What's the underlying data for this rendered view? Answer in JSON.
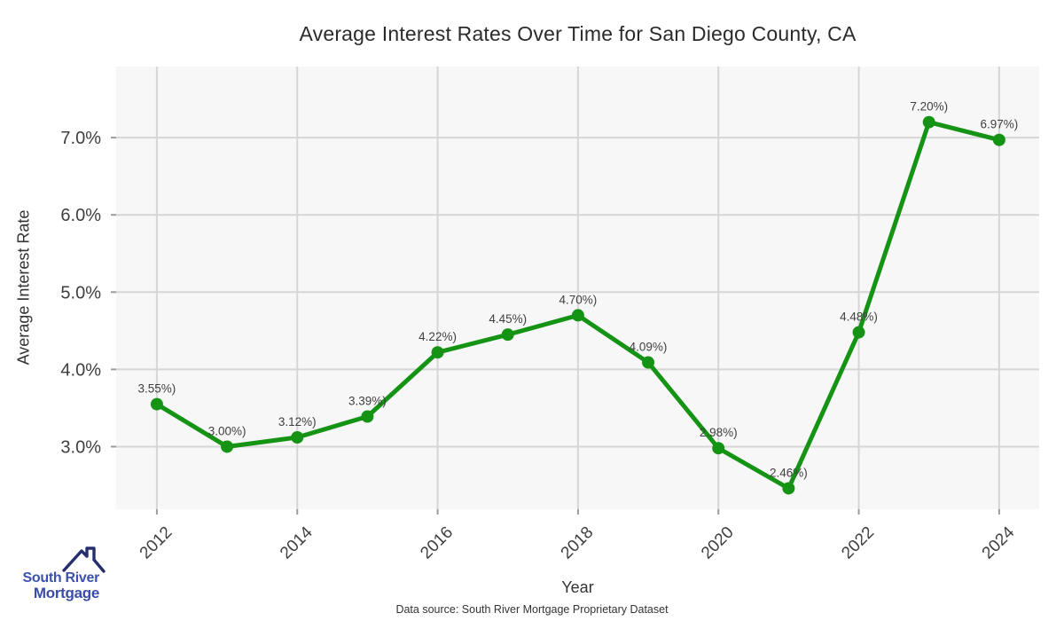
{
  "chart": {
    "title": "Average Interest Rates Over Time for San Diego County, CA",
    "xlabel": "Year",
    "ylabel": "Average Interest Rate",
    "caption": "Data source: South River Mortgage Proprietary Dataset"
  },
  "logo": {
    "line1": "South River",
    "line2": "Mortgage",
    "icon": "house-roof-icon"
  },
  "chart_data": {
    "type": "line",
    "title": "Average Interest Rates Over Time for San Diego County, CA",
    "xlabel": "Year",
    "ylabel": "Average Interest Rate",
    "x": [
      2012,
      2013,
      2014,
      2015,
      2016,
      2017,
      2018,
      2019,
      2020,
      2021,
      2022,
      2023,
      2024
    ],
    "values": [
      3.55,
      3.0,
      3.12,
      3.39,
      4.22,
      4.45,
      4.7,
      4.09,
      2.98,
      2.46,
      4.48,
      7.2,
      6.97
    ],
    "point_labels": [
      "3.55%)",
      "3.00%)",
      "3.12%)",
      "3.39%)",
      "4.22%)",
      "4.45%)",
      "4.70%)",
      "4.09%)",
      "2.98%)",
      "2.46%)",
      "4.48%)",
      "7.20%)",
      "6.97%)"
    ],
    "x_tick_labels": [
      "2012",
      "2014",
      "2016",
      "2018",
      "2020",
      "2022",
      "2024"
    ],
    "x_tick_values": [
      2012,
      2014,
      2016,
      2018,
      2020,
      2022,
      2024
    ],
    "y_tick_labels": [
      "3.0%",
      "4.0%",
      "5.0%",
      "6.0%",
      "7.0%"
    ],
    "y_tick_values": [
      3,
      4,
      5,
      6,
      7
    ],
    "xlim": [
      2011.42,
      2024.57
    ],
    "ylim": [
      2.19,
      7.92
    ],
    "grid": true,
    "legend": "none",
    "colors": {
      "line": "#149314",
      "marker": "#149314",
      "plot_bg": "#f7f7f7",
      "grid": "#d6d6d6",
      "tick": "#9b9b9b",
      "tick_text": "#3f3f3f",
      "label_text": "#3f3f3f"
    }
  }
}
